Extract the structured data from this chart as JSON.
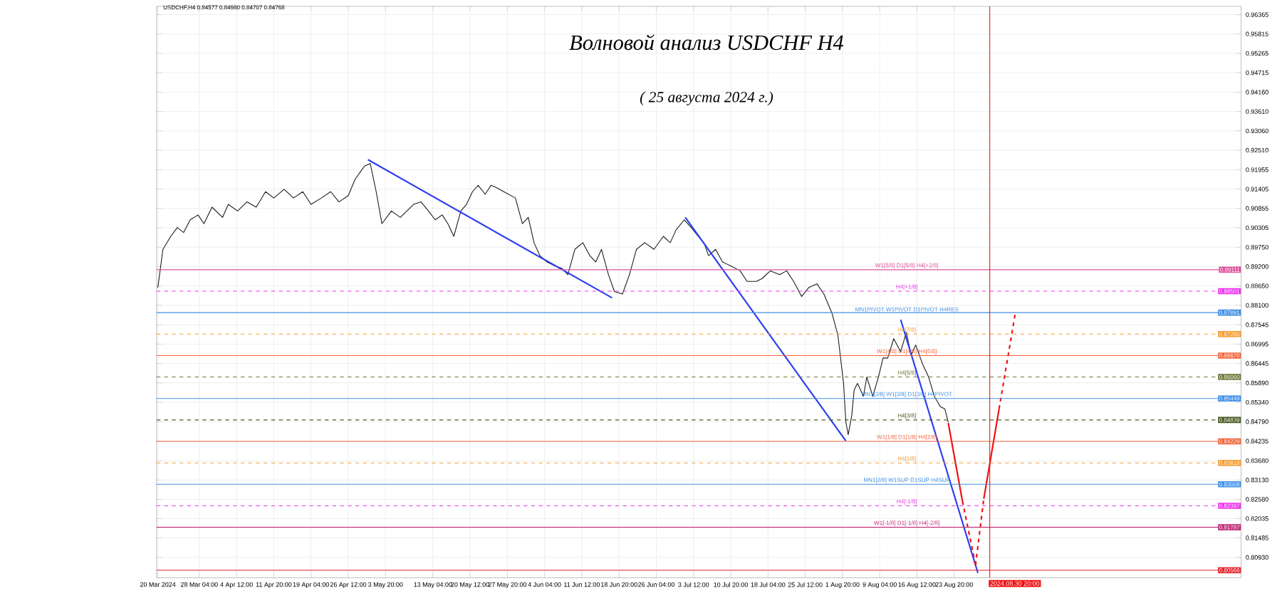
{
  "chart_data": {
    "type": "line",
    "title": "Волновой анализ USDCHF H4",
    "subtitle": "( 25 августа 2024 г.)",
    "annotations": [
      "USDCHF,H4  0.84577 0.84980 0.84707 0.84768",
      {
        "text": "W1[5/8] D1[5/8] H4[+2/8]",
        "x": "2024-08-14T12:00",
        "y": 0.89111
      },
      {
        "text": "H4[+1/8]",
        "x": "2024-08-14T12:00",
        "y": 0.88501
      },
      {
        "text": "MN1PIVOT W1PIVOT D1PIVOT H4RES",
        "x": "2024-08-14T12:00",
        "y": 0.87891
      },
      {
        "text": "H4[7/8]",
        "x": "2024-08-14T12:00",
        "y": 0.8728
      },
      {
        "text": "W1[4/8] D1[4/8] H4[6/8]",
        "x": "2024-08-14T12:00",
        "y": 0.8667
      },
      {
        "text": "H4[5/8]",
        "x": "2024-08-14T12:00",
        "y": 0.8606
      },
      {
        "text": "MN1[3/8] W1[3/8] D1[3/8] H4PIVOT",
        "x": "2024-08-14T12:00",
        "y": 0.85449
      },
      {
        "text": "H4[3/8]",
        "x": "2024-08-14T12:00",
        "y": 0.84839
      },
      {
        "text": "W1[1/8] D1[1/8] H4[2/8]",
        "x": "2024-08-14T12:00",
        "y": 0.84229
      },
      {
        "text": "H4[1/8]",
        "x": "2024-08-14T12:00",
        "y": 0.83618
      },
      {
        "text": "MN1[2/8] W1SUP D1SUP H4SUP",
        "x": "2024-08-14T12:00",
        "y": 0.83008
      },
      {
        "text": "H4[-1/8]",
        "x": "2024-08-14T12:00",
        "y": 0.82397
      },
      {
        "text": "W1[-1/8] D1[-1/8] H4[-2/8]",
        "x": "2024-08-14T12:00",
        "y": 0.81787
      }
    ],
    "xlim": [
      "2024-03-19T18:00",
      "2024-10-19T08:00"
    ],
    "ylim": [
      0.8035,
      0.966
    ],
    "xticks": [
      {
        "value": "2024-03-20T00:00",
        "label": "20 Mar 2024"
      },
      {
        "value": "2024-03-28T04:00",
        "label": "28 Mar 04:00"
      },
      {
        "value": "2024-04-04T12:00",
        "label": "4 Apr 12:00"
      },
      {
        "value": "2024-04-11T20:00",
        "label": "11 Apr 20:00"
      },
      {
        "value": "2024-04-19T04:00",
        "label": "19 Apr 04:00"
      },
      {
        "value": "2024-04-26T12:00",
        "label": "26 Apr 12:00"
      },
      {
        "value": "2024-05-03T20:00",
        "label": "3 May 20:00"
      },
      {
        "value": "2024-05-13T04:00",
        "label": "13 May 04:00"
      },
      {
        "value": "2024-05-20T12:00",
        "label": "20 May 12:00"
      },
      {
        "value": "2024-05-27T20:00",
        "label": "27 May 20:00"
      },
      {
        "value": "2024-06-04T04:00",
        "label": "4 Jun 04:00"
      },
      {
        "value": "2024-06-11T12:00",
        "label": "11 Jun 12:00"
      },
      {
        "value": "2024-06-18T20:00",
        "label": "18 Jun 20:00"
      },
      {
        "value": "2024-06-26T04:00",
        "label": "26 Jun 04:00"
      },
      {
        "value": "2024-07-03T12:00",
        "label": "3 Jul 12:00"
      },
      {
        "value": "2024-07-10T20:00",
        "label": "10 Jul 20:00"
      },
      {
        "value": "2024-07-18T04:00",
        "label": "18 Jul 04:00"
      },
      {
        "value": "2024-07-25T12:00",
        "label": "25 Jul 12:00"
      },
      {
        "value": "2024-08-01T20:00",
        "label": "1 Aug 20:00"
      },
      {
        "value": "2024-08-09T04:00",
        "label": "9 Aug 04:00"
      },
      {
        "value": "2024-08-16T12:00",
        "label": "16 Aug 12:00"
      },
      {
        "value": "2024-08-23T20:00",
        "label": "23 Aug 20:00"
      }
    ],
    "yticks": [
      0.96365,
      0.95815,
      0.95265,
      0.94715,
      {
        "value": 0.9416,
        "label": "0.94160"
      },
      {
        "value": 0.9361,
        "label": "0.93610"
      },
      {
        "value": 0.9306,
        "label": "0.93060"
      },
      {
        "value": 0.9251,
        "label": "0.92510"
      },
      0.91955,
      0.91405,
      0.90855,
      0.90305,
      {
        "value": 0.8975,
        "label": "0.89750"
      },
      {
        "value": 0.892,
        "label": "0.89200"
      },
      {
        "value": 0.8865,
        "label": "0.88650"
      },
      {
        "value": 0.881,
        "label": "0.88100"
      },
      0.87545,
      0.86995,
      0.86445,
      {
        "value": 0.8589,
        "label": "0.85890"
      },
      {
        "value": 0.8534,
        "label": "0.85340"
      },
      {
        "value": 0.8479,
        "label": "0.84790"
      },
      0.84235,
      {
        "value": 0.8368,
        "label": "0.83680"
      },
      {
        "value": 0.8313,
        "label": "0.83130"
      },
      {
        "value": 0.8258,
        "label": "0.82580"
      },
      0.82035,
      0.81485,
      {
        "value": 0.8093,
        "label": "0.80930"
      }
    ],
    "grid": true,
    "series": [
      {
        "color": "#1a1a1a",
        "line_style": "solid",
        "x": [
          "2024-03-20T00:00",
          "2024-03-21T00:00",
          "2024-03-22T13:00",
          "2024-03-23T20:00",
          "2024-03-25T02:00",
          "2024-03-26T09:00",
          "2024-03-27T22:00",
          "2024-03-29T02:00",
          "2024-03-30T16:00",
          "2024-04-01T18:00",
          "2024-04-02T21:00",
          "2024-04-04T17:00",
          "2024-04-06T13:00",
          "2024-04-08T09:00",
          "2024-04-10T05:00",
          "2024-04-11T20:00",
          "2024-04-13T21:00",
          "2024-04-15T17:00",
          "2024-04-17T13:00",
          "2024-04-19T04:00",
          "2024-04-21T05:00",
          "2024-04-23T01:00",
          "2024-04-24T16:00",
          "2024-04-26T12:00",
          "2024-04-27T21:00",
          "2024-04-29T17:00",
          "2024-04-30T20:00",
          "2024-05-02T00:00",
          "2024-05-03T03:00",
          "2024-05-05T00:00",
          "2024-05-06T18:00",
          "2024-05-09T09:00",
          "2024-05-10T20:00",
          "2024-05-12T07:00",
          "2024-05-13T15:00",
          "2024-05-15T00:00",
          "2024-05-16T03:00",
          "2024-05-17T07:00",
          "2024-05-18T16:00",
          "2024-05-19T19:00",
          "2024-05-20T23:00",
          "2024-05-22T02:00",
          "2024-05-23T11:00",
          "2024-05-24T15:00",
          "2024-05-25T18:00",
          "2024-05-27T03:00",
          "2024-05-29T10:00",
          "2024-05-30T19:00",
          "2024-05-31T23:00",
          "2024-06-02T02:00",
          "2024-06-03T06:00",
          "2024-06-04T15:00",
          "2024-06-06T05:00",
          "2024-06-07T14:00",
          "2024-06-08T18:00",
          "2024-06-10T03:00",
          "2024-06-11T17:00",
          "2024-06-13T02:00",
          "2024-06-14T06:00",
          "2024-06-15T09:00",
          "2024-06-16T18:00",
          "2024-06-17T22:00",
          "2024-06-19T12:00",
          "2024-06-20T21:00",
          "2024-06-22T06:00",
          "2024-06-23T21:00",
          "2024-06-25T17:00",
          "2024-06-27T13:00",
          "2024-06-28T22:00",
          "2024-06-30T01:00",
          "2024-07-01T16:00",
          "2024-07-03T01:00",
          "2024-07-04T10:00",
          "2024-07-05T13:00",
          "2024-07-06T11:00",
          "2024-07-07T20:00",
          "2024-07-09T05:00",
          "2024-07-10T20:00",
          "2024-07-12T16:00",
          "2024-07-14T01:00",
          "2024-07-15T21:00",
          "2024-07-17T00:00",
          "2024-07-18T15:00",
          "2024-07-20T11:00",
          "2024-07-21T20:00",
          "2024-07-23T05:00",
          "2024-07-24T19:00",
          "2024-07-26T04:00",
          "2024-07-27T19:00",
          "2024-07-29T04:00",
          "2024-07-30T18:00",
          "2024-07-31T22:00",
          "2024-08-02T01:00",
          "2024-08-02T12:00",
          "2024-08-02T23:00",
          "2024-08-03T16:00",
          "2024-08-04T03:00",
          "2024-08-04T19:00",
          "2024-08-05T23:00",
          "2024-08-06T15:00",
          "2024-08-07T19:00",
          "2024-08-08T22:00",
          "2024-08-09T20:00",
          "2024-08-10T18:00",
          "2024-08-11T22:00",
          "2024-08-13T07:00",
          "2024-08-14T10:00",
          "2024-08-15T08:00",
          "2024-08-16T06:00",
          "2024-08-17T15:00",
          "2024-08-18T19:00",
          "2024-08-19T22:00",
          "2024-08-21T02:00",
          "2024-08-22T00:00",
          "2024-08-22T16:00"
        ],
        "values": [
          0.886,
          0.8969,
          0.9006,
          0.9031,
          0.9017,
          0.9053,
          0.9067,
          0.9042,
          0.9089,
          0.906,
          0.9097,
          0.9078,
          0.9104,
          0.9089,
          0.9133,
          0.9115,
          0.914,
          0.9115,
          0.9133,
          0.9097,
          0.9115,
          0.9133,
          0.9104,
          0.9122,
          0.9169,
          0.9206,
          0.9213,
          0.9133,
          0.9042,
          0.9078,
          0.906,
          0.9097,
          0.9104,
          0.9078,
          0.9053,
          0.9067,
          0.9042,
          0.9006,
          0.9078,
          0.9097,
          0.9133,
          0.9151,
          0.9126,
          0.9151,
          0.9144,
          0.9133,
          0.9115,
          0.9042,
          0.906,
          0.8988,
          0.8951,
          0.8933,
          0.8922,
          0.8915,
          0.8897,
          0.8969,
          0.8988,
          0.8951,
          0.8933,
          0.8969,
          0.8897,
          0.8849,
          0.8842,
          0.8897,
          0.8969,
          0.8988,
          0.8969,
          0.9006,
          0.8988,
          0.9024,
          0.9053,
          0.9031,
          0.9006,
          0.8988,
          0.8951,
          0.8969,
          0.8933,
          0.8922,
          0.8908,
          0.8878,
          0.8878,
          0.8886,
          0.8908,
          0.8897,
          0.8908,
          0.8878,
          0.8835,
          0.886,
          0.8871,
          0.8842,
          0.8788,
          0.8726,
          0.8588,
          0.8478,
          0.8442,
          0.8497,
          0.8569,
          0.8588,
          0.8551,
          0.8606,
          0.8551,
          0.8606,
          0.866,
          0.866,
          0.8715,
          0.8678,
          0.8733,
          0.8668,
          0.8697,
          0.8642,
          0.8606,
          0.8551,
          0.8522,
          0.8515,
          0.8477
        ]
      },
      {
        "color": "#2d3df0",
        "line_style": "solid",
        "x": [
          "2024-04-30T09:00",
          "2024-06-17T11:00"
        ],
        "values": [
          0.9224,
          0.8831
        ]
      },
      {
        "color": "#2d3df0",
        "line_style": "solid",
        "x": [
          "2024-07-01T21:00",
          "2024-08-02T12:00"
        ],
        "values": [
          0.906,
          0.8424
        ]
      },
      {
        "color": "#2d3df0",
        "line_style": "solid",
        "x": [
          "2024-08-13T07:00",
          "2024-08-28T12:00"
        ],
        "values": [
          0.8769,
          0.8049
        ]
      },
      {
        "color": "#ee1111",
        "line_style": "solid",
        "x": [
          "2024-08-22T16:00",
          "2024-08-25T11:00"
        ],
        "values": [
          0.8475,
          0.8253
        ]
      },
      {
        "color": "#ee1111",
        "line_style": "dashed",
        "x": [
          "2024-08-25T11:00",
          "2024-08-28T01:00"
        ],
        "values": [
          0.8253,
          0.8071
        ]
      },
      {
        "color": "#ee1111",
        "line_style": "dashed",
        "x": [
          "2024-08-28T01:00",
          "2024-08-29T16:00"
        ],
        "values": [
          0.8071,
          0.826
        ]
      },
      {
        "color": "#ee1111",
        "line_style": "solid",
        "x": [
          "2024-08-29T16:00",
          "2024-09-01T16:00"
        ],
        "values": [
          0.826,
          0.8515
        ]
      },
      {
        "color": "#ee1111",
        "line_style": "dashed",
        "x": [
          "2024-09-01T16:00",
          "2024-09-04T21:00"
        ],
        "values": [
          0.8515,
          0.8788
        ]
      }
    ],
    "ref_lines": [
      {
        "axis": "y",
        "value": 0.89111,
        "label": "0.89111",
        "color": "#e0509b",
        "line_style": "solid"
      },
      {
        "axis": "y",
        "value": 0.88501,
        "label": "0.88501",
        "color": "#ee33ee",
        "line_style": "dashed"
      },
      {
        "axis": "y",
        "value": 0.87891,
        "label": "0.87891",
        "color": "#3f8fe6",
        "line_style": "solid"
      },
      {
        "axis": "y",
        "value": 0.8728,
        "label": "0.87280",
        "color": "#f59a2c",
        "line_style": "dashed"
      },
      {
        "axis": "y",
        "value": 0.8667,
        "label": "0.86670",
        "color": "#f0643c",
        "line_style": "solid"
      },
      {
        "axis": "y",
        "value": 0.8606,
        "label": "0.86060",
        "color": "#6b7a3a",
        "line_style": "dashed"
      },
      {
        "axis": "y",
        "value": 0.85449,
        "label": "0.85449",
        "color": "#3f8fe6",
        "line_style": "solid"
      },
      {
        "axis": "y",
        "value": 0.84839,
        "label": "0.84839",
        "color": "#4b5a25",
        "line_style": "dashed"
      },
      {
        "axis": "y",
        "value": 0.84229,
        "label": "0.84229",
        "color": "#f0643c",
        "line_style": "solid"
      },
      {
        "axis": "y",
        "value": 0.83618,
        "label": "0.83618",
        "color": "#f59a2c",
        "line_style": "dashed"
      },
      {
        "axis": "y",
        "value": 0.83008,
        "label": "0.83008",
        "color": "#3f8fe6",
        "line_style": "solid"
      },
      {
        "axis": "y",
        "value": 0.82397,
        "label": "0.82397",
        "color": "#ee33ee",
        "line_style": "dashed"
      },
      {
        "axis": "y",
        "value": 0.81787,
        "label": "0.81787",
        "color": "#c2307a",
        "line_style": "solid"
      },
      {
        "axis": "y",
        "value": 0.80566,
        "label": "0.80566",
        "color": "#e8202a",
        "line_style": "solid"
      },
      {
        "axis": "x",
        "value": "2024-08-30T20:00",
        "label": "2024.08.30 20:00",
        "color": "#ee1111",
        "line_style": "solid"
      }
    ]
  }
}
